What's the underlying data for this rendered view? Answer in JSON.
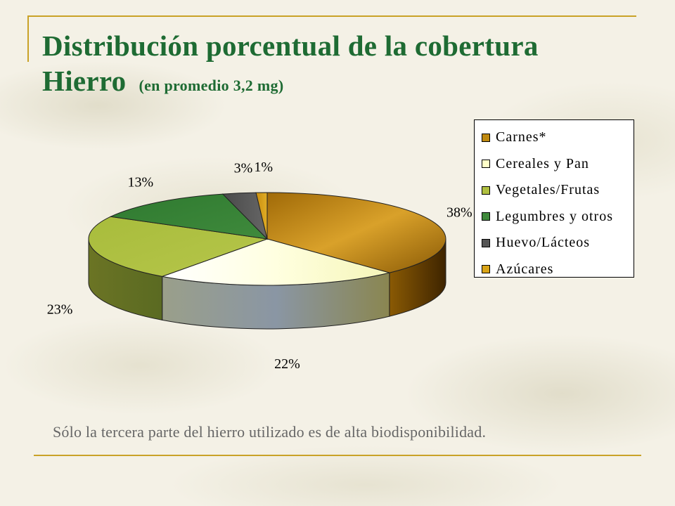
{
  "slide": {
    "title_line1": "Distribución porcentual de la cobertura",
    "title_line2": "Hierro",
    "title_sub": "(en promedio 3,2 mg)",
    "footnote": "Sólo la tercera parte del hierro utilizado es de alta biodisponibilidad."
  },
  "chart_data": {
    "type": "pie",
    "style": "3d-pie",
    "legend_position": "right",
    "categories": [
      "Carnes*",
      "Cereales y Pan",
      "Vegetales/Frutas",
      "Legumbres y otros",
      "Huevo/Lácteos",
      "Azúcares"
    ],
    "values": [
      38,
      22,
      23,
      13,
      3,
      1
    ],
    "labels": [
      "38%",
      "22%",
      "23%",
      "13%",
      "3%",
      "1%"
    ],
    "colors": [
      "#c08a10",
      "#ffffc8",
      "#b0c040",
      "#3f8a3c",
      "#555555",
      "#d9a417"
    ]
  }
}
